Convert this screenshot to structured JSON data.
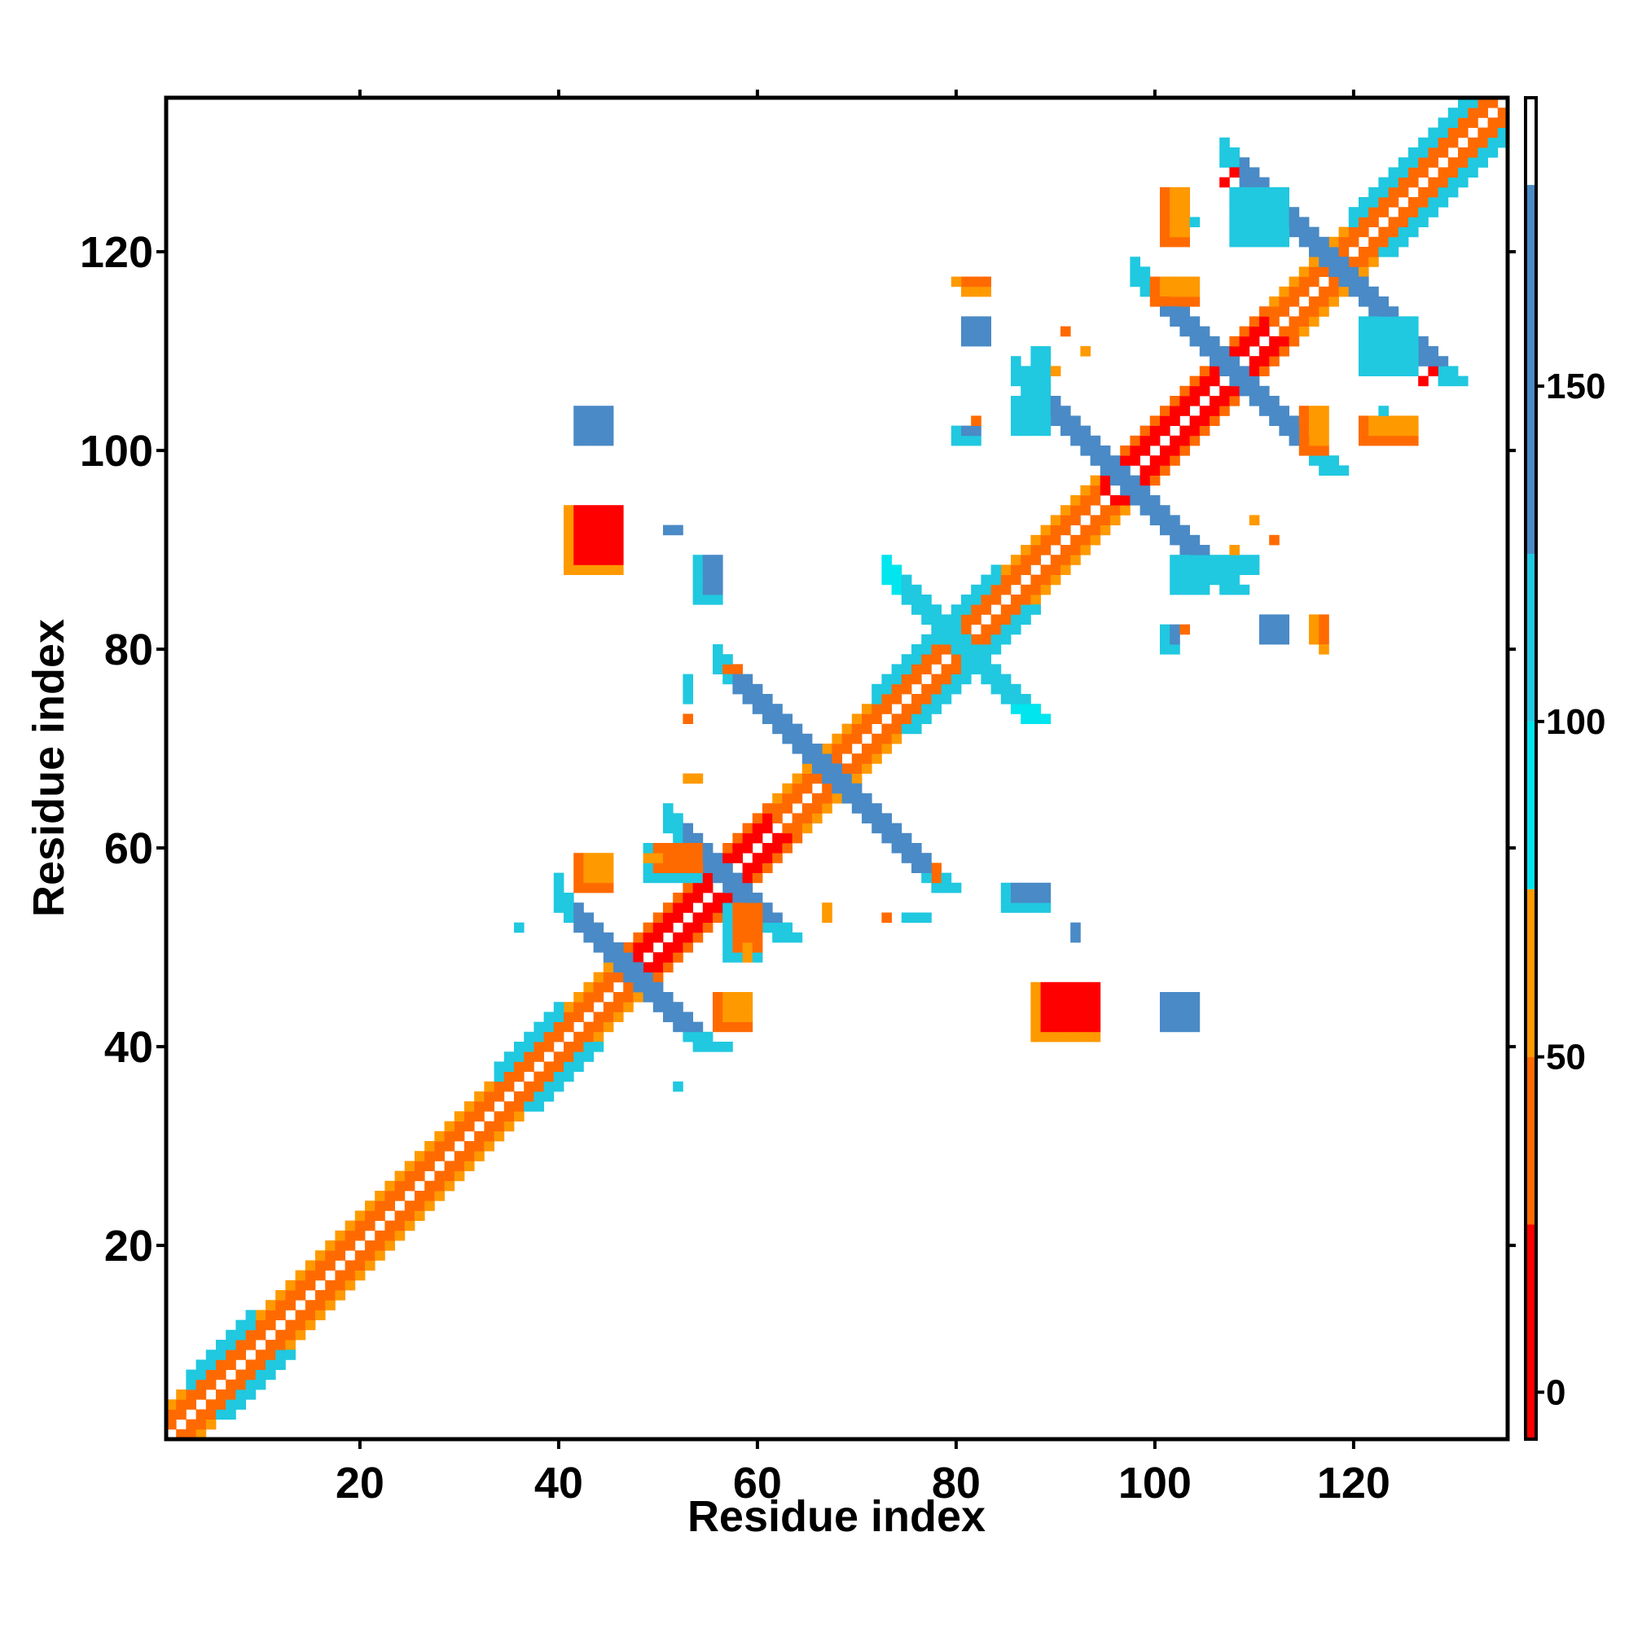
{
  "chart_data": {
    "type": "heatmap",
    "title": "",
    "xlabel": "Residue index",
    "ylabel": "Residue index",
    "xlim": [
      1,
      135
    ],
    "ylim": [
      1,
      135
    ],
    "x_ticks": [
      20,
      40,
      60,
      80,
      100,
      120
    ],
    "y_ticks": [
      20,
      40,
      60,
      80,
      100,
      120
    ],
    "grid": false,
    "symmetric": true,
    "colorbar": {
      "ticks": [
        0,
        50,
        100,
        150
      ],
      "range": [
        -7,
        193
      ],
      "bands": [
        {
          "from": -7,
          "to": 25,
          "color": "#ff0000"
        },
        {
          "from": 25,
          "to": 50,
          "color": "#ff6a00"
        },
        {
          "from": 50,
          "to": 75,
          "color": "#ff9900"
        },
        {
          "from": 75,
          "to": 100,
          "color": "#00e5ee"
        },
        {
          "from": 100,
          "to": 125,
          "color": "#20c8e0"
        },
        {
          "from": 125,
          "to": 180,
          "color": "#4a8ac6"
        },
        {
          "from": 180,
          "to": 193,
          "color": "#ffffff"
        }
      ]
    },
    "regions": [
      {
        "kind": "diag",
        "from": 1,
        "to": 47,
        "offsets": [
          1,
          2,
          3
        ],
        "values": [
          30,
          45,
          60
        ]
      },
      {
        "kind": "diag",
        "from": 47,
        "to": 62,
        "offsets": [
          1,
          2,
          3
        ],
        "values": [
          10,
          20,
          40
        ]
      },
      {
        "kind": "diag",
        "from": 62,
        "to": 95,
        "offsets": [
          1,
          2,
          3
        ],
        "values": [
          30,
          45,
          60
        ]
      },
      {
        "kind": "diag",
        "from": 95,
        "to": 112,
        "offsets": [
          1,
          2,
          3
        ],
        "values": [
          10,
          20,
          40
        ]
      },
      {
        "kind": "diag",
        "from": 112,
        "to": 134,
        "offsets": [
          1,
          2,
          3
        ],
        "values": [
          30,
          45,
          60
        ]
      },
      {
        "kind": "diag",
        "from": 3,
        "to": 9,
        "offsets": [
          3,
          4
        ],
        "values": [
          100,
          100
        ]
      },
      {
        "kind": "diag",
        "from": 34,
        "to": 40,
        "offsets": [
          3,
          4
        ],
        "values": [
          100,
          100
        ]
      },
      {
        "kind": "diag",
        "from": 72,
        "to": 84,
        "offsets": [
          3,
          4
        ],
        "values": [
          100,
          110
        ]
      },
      {
        "kind": "diag",
        "from": 120,
        "to": 134,
        "offsets": [
          3,
          4
        ],
        "values": [
          100,
          110
        ]
      },
      {
        "kind": "anti",
        "sum": 94,
        "from": 40,
        "to": 54,
        "width": 3,
        "value": 150,
        "tipValue": 110
      },
      {
        "kind": "anti",
        "sum": 113,
        "from": 51,
        "to": 62,
        "width": 3,
        "value": 150,
        "tipValue": 110
      },
      {
        "kind": "anti",
        "sum": 134,
        "from": 56,
        "to": 78,
        "width": 3,
        "value": 150,
        "tipValue": 110
      },
      {
        "kind": "anti",
        "sum": 160,
        "from": 73,
        "to": 87,
        "width": 3,
        "value": 120,
        "tipValue": 95
      },
      {
        "kind": "anti",
        "sum": 193,
        "from": 86,
        "to": 107,
        "width": 3,
        "value": 150,
        "tipValue": 110
      },
      {
        "kind": "anti",
        "sum": 215,
        "from": 98,
        "to": 117,
        "width": 3,
        "value": 150,
        "tipValue": 110
      },
      {
        "kind": "anti",
        "sum": 236,
        "from": 107,
        "to": 129,
        "width": 3,
        "value": 130,
        "tipValue": 100
      },
      {
        "kind": "block",
        "x": [
          41,
          46
        ],
        "y": [
          88,
          94
        ],
        "value": 10,
        "edgeValue": 55
      },
      {
        "kind": "block",
        "x": [
          54,
          56
        ],
        "y": [
          85,
          89
        ],
        "value": 150,
        "edgeValue": 110
      },
      {
        "kind": "block",
        "x": [
          101,
          102
        ],
        "y": [
          80,
          82
        ],
        "value": 150,
        "edgeValue": 110
      },
      {
        "kind": "block",
        "x": [
          42,
          45
        ],
        "y": [
          101,
          104
        ],
        "value": 150,
        "edgeValue": 150
      },
      {
        "kind": "block",
        "x": [
          81,
          83
        ],
        "y": [
          111,
          113
        ],
        "value": 150,
        "edgeValue": 150
      },
      {
        "kind": "block",
        "x": [
          81,
          83
        ],
        "y": [
          116,
          117
        ],
        "value": 40,
        "edgeValue": 60
      },
      {
        "kind": "block",
        "x": [
          86,
          89
        ],
        "y": [
          102,
          105
        ],
        "value": 110,
        "edgeValue": 100
      },
      {
        "kind": "block",
        "x": [
          100,
          104
        ],
        "y": [
          115,
          117
        ],
        "value": 60,
        "edgeValue": 40
      },
      {
        "kind": "block",
        "x": [
          108,
          113
        ],
        "y": [
          121,
          126
        ],
        "value": 110,
        "edgeValue": 100
      },
      {
        "kind": "block",
        "x": [
          121,
          126
        ],
        "y": [
          101,
          103
        ],
        "value": 60,
        "edgeValue": 40
      },
      {
        "kind": "block",
        "x": [
          103,
          110
        ],
        "y": [
          88,
          89
        ],
        "value": 110,
        "edgeValue": 100
      },
      {
        "kind": "block",
        "x": [
          56,
          59
        ],
        "y": [
          42,
          45
        ],
        "value": 50,
        "edgeValue": 40
      },
      {
        "kind": "block",
        "x": [
          49,
          54
        ],
        "y": [
          57,
          60
        ],
        "value": 40,
        "edgeValue": 110
      }
    ],
    "points": [
      {
        "x": 44,
        "y": 102,
        "value": 150
      },
      {
        "x": 52,
        "y": 92,
        "value": 150
      },
      {
        "x": 82,
        "y": 103,
        "value": 40
      },
      {
        "x": 103,
        "y": 82,
        "value": 40
      },
      {
        "x": 117,
        "y": 81,
        "value": 40
      },
      {
        "x": 117,
        "y": 80,
        "value": 55
      },
      {
        "x": 36,
        "y": 52,
        "value": 110
      },
      {
        "x": 52,
        "y": 36,
        "value": 110
      },
      {
        "x": 59,
        "y": 50,
        "value": 60
      },
      {
        "x": 59,
        "y": 49,
        "value": 60
      },
      {
        "x": 92,
        "y": 51,
        "value": 150
      },
      {
        "x": 103,
        "y": 42,
        "value": 150
      },
      {
        "x": 57,
        "y": 40,
        "value": 110
      },
      {
        "x": 76,
        "y": 53,
        "value": 110
      },
      {
        "x": 77,
        "y": 53,
        "value": 110
      },
      {
        "x": 75,
        "y": 53,
        "value": 60
      },
      {
        "x": 53,
        "y": 67,
        "value": 60
      },
      {
        "x": 54,
        "y": 67,
        "value": 60
      },
      {
        "x": 53,
        "y": 73,
        "value": 40
      },
      {
        "x": 53,
        "y": 75,
        "value": 110
      },
      {
        "x": 57,
        "y": 78,
        "value": 40
      },
      {
        "x": 78,
        "y": 58,
        "value": 40
      },
      {
        "x": 128,
        "y": 108,
        "value": 10
      },
      {
        "x": 107,
        "y": 127,
        "value": 10
      },
      {
        "x": 104,
        "y": 123,
        "value": 110
      },
      {
        "x": 123,
        "y": 104,
        "value": 110
      },
      {
        "x": 112,
        "y": 91,
        "value": 40
      },
      {
        "x": 110,
        "y": 93,
        "value": 60
      },
      {
        "x": 108,
        "y": 90,
        "value": 60
      }
    ]
  }
}
